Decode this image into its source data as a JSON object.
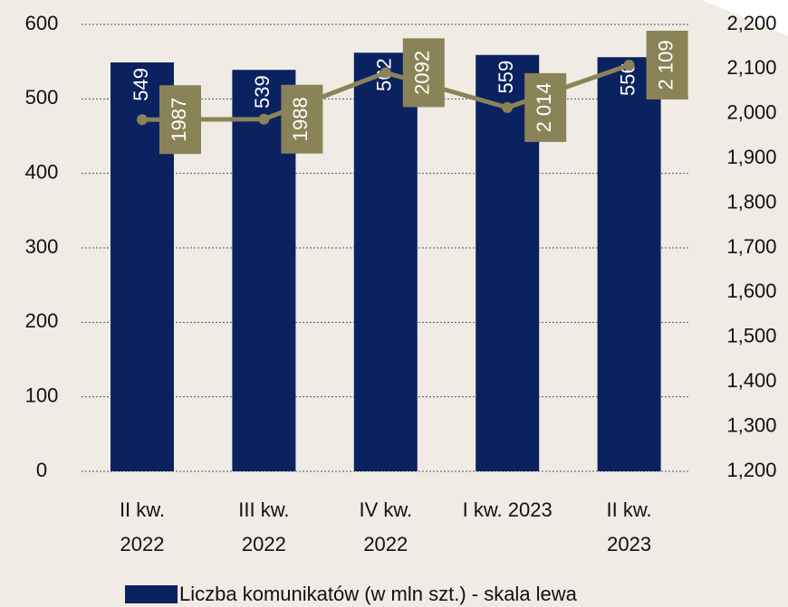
{
  "chart_data": {
    "type": "bar-line",
    "categories": [
      [
        "II kw.",
        "2022"
      ],
      [
        "III kw.",
        "2022"
      ],
      [
        "IV kw.",
        "2022"
      ],
      [
        "I kw. 2023"
      ],
      [
        "II kw.",
        "2023"
      ]
    ],
    "series": [
      {
        "name": "Liczba komunikatów (w mln szt.) - skala lewa",
        "type": "bar",
        "color": "#0b2260",
        "values": [
          549,
          539,
          562,
          559,
          556
        ]
      },
      {
        "type": "line",
        "axis": "y2",
        "color": "#8b8358",
        "values": [
          1987,
          1988,
          2092,
          2014,
          2109
        ],
        "value_labels": [
          "1987",
          "1988",
          "2092",
          "2 014",
          "2 109"
        ]
      }
    ],
    "ylim": [
      0,
      600
    ],
    "yticks": [
      0,
      100,
      200,
      300,
      400,
      500,
      600
    ],
    "y2lim": [
      1200,
      2200
    ],
    "y2ticks": [
      {
        "value": 1200,
        "label": "1,200"
      },
      {
        "value": 1300,
        "label": "1,300"
      },
      {
        "value": 1400,
        "label": "1,400"
      },
      {
        "value": 1500,
        "label": "1,500"
      },
      {
        "value": 1600,
        "label": "1,600"
      },
      {
        "value": 1700,
        "label": "1,700"
      },
      {
        "value": 1800,
        "label": "1,800"
      },
      {
        "value": 1900,
        "label": "1,900"
      },
      {
        "value": 2000,
        "label": "2,000"
      },
      {
        "value": 2100,
        "label": "2,100"
      },
      {
        "value": 2200,
        "label": "2,200"
      }
    ],
    "grid": true,
    "legend": "bottom"
  }
}
